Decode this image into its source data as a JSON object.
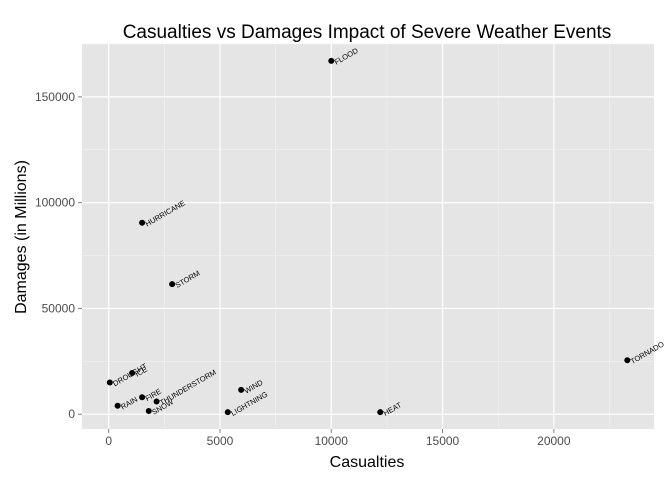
{
  "chart_data": {
    "type": "scatter",
    "title": "Casualties vs Damages Impact of Severe Weather Events",
    "xlabel": "Casualties",
    "ylabel": "Damages (in Millions)",
    "xlim": [
      -1200,
      24500
    ],
    "ylim": [
      -7000,
      175000
    ],
    "x_ticks": [
      0,
      5000,
      10000,
      15000,
      20000
    ],
    "x_tick_labels": [
      "0",
      "5000",
      "10000",
      "15000",
      "20000"
    ],
    "y_ticks": [
      0,
      50000,
      100000,
      150000
    ],
    "y_tick_labels": [
      "0",
      "50000",
      "100000",
      "150000"
    ],
    "grid": true,
    "panel_color": "#e5e5e5",
    "grid_color": "#ffffff",
    "point_color": "#000000",
    "points": [
      {
        "label": "FLOOD",
        "x": 10000,
        "y": 167000
      },
      {
        "label": "HURRICANE",
        "x": 1500,
        "y": 90500
      },
      {
        "label": "STORM",
        "x": 2850,
        "y": 61500
      },
      {
        "label": "TORNADO",
        "x": 23300,
        "y": 25500
      },
      {
        "label": "DROUGHT",
        "x": 50,
        "y": 15000
      },
      {
        "label": "ICE",
        "x": 1050,
        "y": 19500
      },
      {
        "label": "FIRE",
        "x": 1500,
        "y": 8000
      },
      {
        "label": "THUNDERSTORM",
        "x": 2150,
        "y": 6000
      },
      {
        "label": "RAIN",
        "x": 400,
        "y": 4000
      },
      {
        "label": "SNOW",
        "x": 1800,
        "y": 1500
      },
      {
        "label": "WIND",
        "x": 5950,
        "y": 11500
      },
      {
        "label": "LIGHTNING",
        "x": 5350,
        "y": 1000
      },
      {
        "label": "HEAT",
        "x": 12200,
        "y": 1000
      }
    ]
  }
}
